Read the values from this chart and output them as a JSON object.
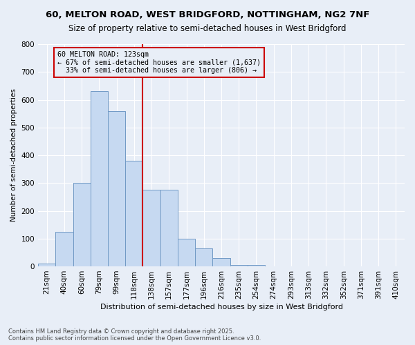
{
  "title1": "60, MELTON ROAD, WEST BRIDGFORD, NOTTINGHAM, NG2 7NF",
  "title2": "Size of property relative to semi-detached houses in West Bridgford",
  "xlabel": "Distribution of semi-detached houses by size in West Bridgford",
  "ylabel": "Number of semi-detached properties",
  "footnote": "Contains HM Land Registry data © Crown copyright and database right 2025.\nContains public sector information licensed under the Open Government Licence v3.0.",
  "bin_labels": [
    "21sqm",
    "40sqm",
    "60sqm",
    "79sqm",
    "99sqm",
    "118sqm",
    "138sqm",
    "157sqm",
    "177sqm",
    "196sqm",
    "216sqm",
    "235sqm",
    "254sqm",
    "274sqm",
    "293sqm",
    "313sqm",
    "332sqm",
    "352sqm",
    "371sqm",
    "391sqm",
    "410sqm"
  ],
  "bar_values": [
    10,
    125,
    300,
    630,
    560,
    380,
    275,
    275,
    100,
    65,
    30,
    5,
    5,
    0,
    0,
    0,
    0,
    0,
    0,
    0,
    0
  ],
  "bar_color": "#c6d9f1",
  "bar_edge_color": "#7099c5",
  "subject_sqm": 123,
  "pct_smaller": 67,
  "pct_larger": 33,
  "n_smaller": 1637,
  "n_larger": 806,
  "red_line_color": "#cc0000",
  "bg_color": "#e8eef7",
  "grid_color": "#ffffff",
  "ylim": [
    0,
    800
  ],
  "yticks": [
    0,
    100,
    200,
    300,
    400,
    500,
    600,
    700,
    800
  ]
}
